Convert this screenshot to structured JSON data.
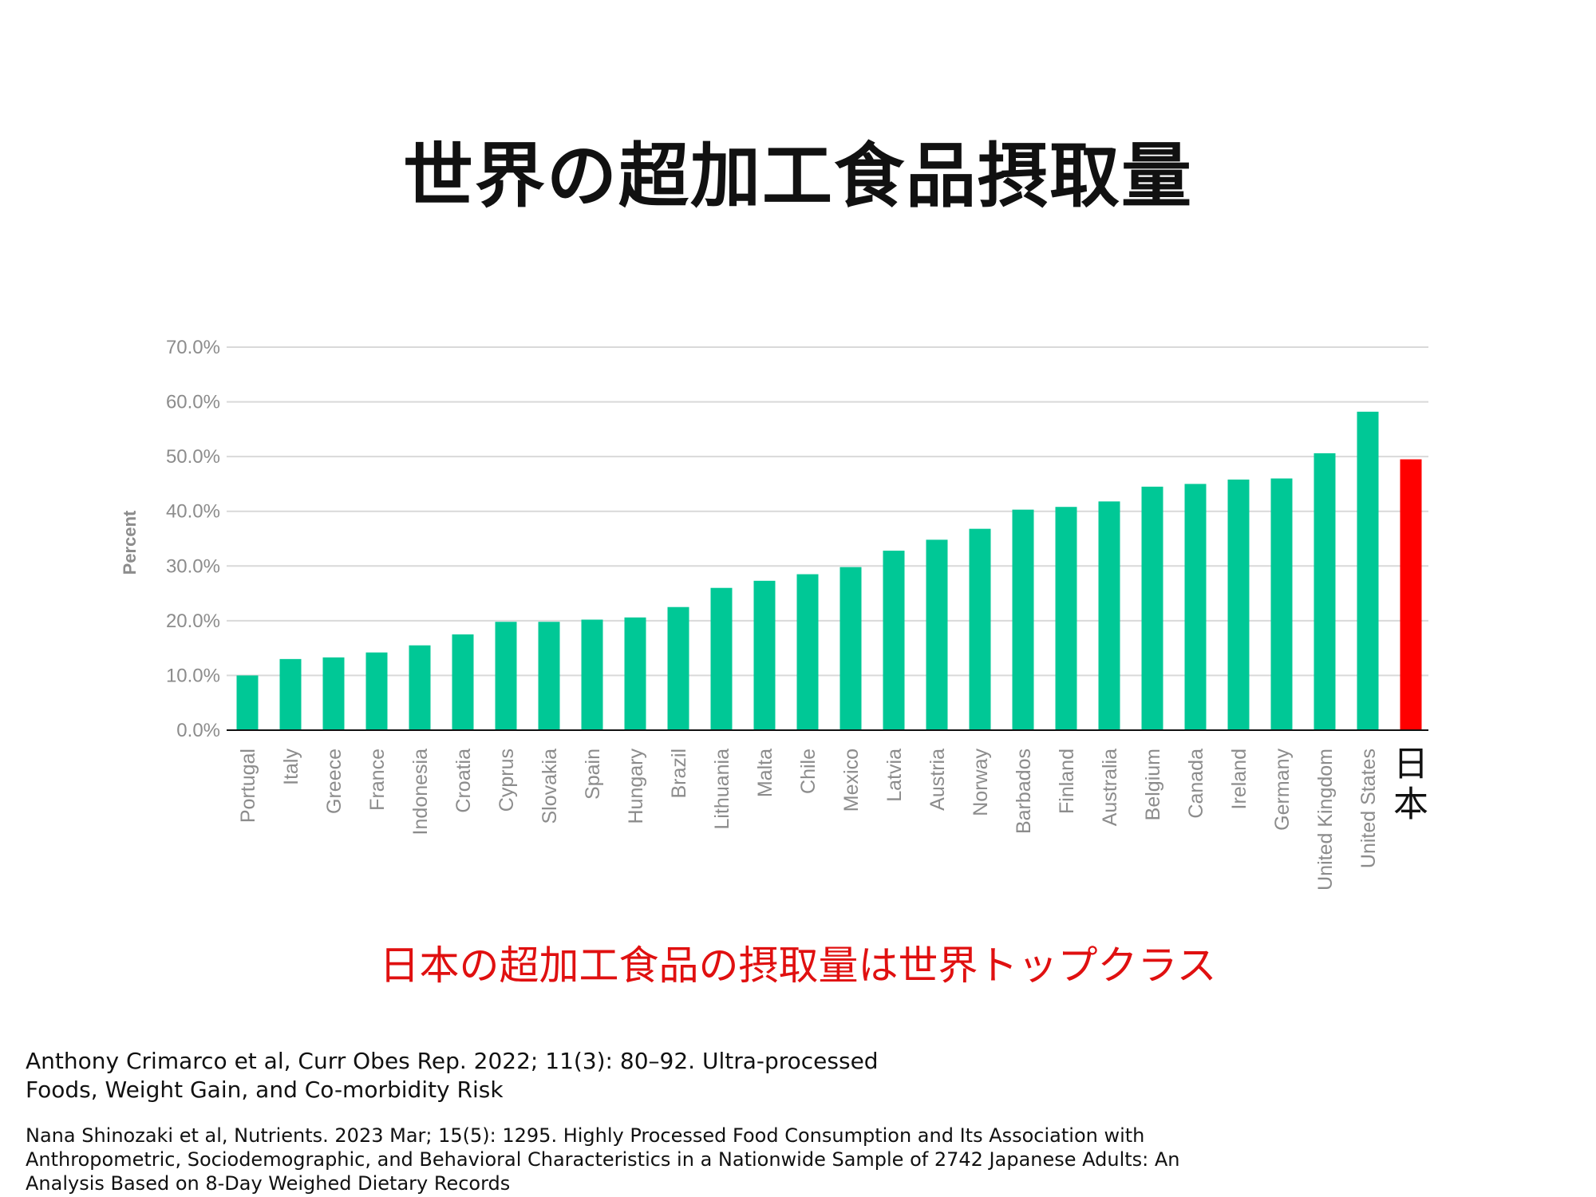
{
  "title": "世界の超加工食品摂取量",
  "subtitle": "日本の超加工食品の摂取量は世界トップクラス",
  "references": [
    "Anthony Crimarco et al,  Curr Obes Rep. 2022; 11(3): 80–92. Ultra-processed Foods, Weight Gain, and Co-morbidity Risk",
    "Nana Shinozaki et al,  Nutrients. 2023 Mar; 15(5): 1295. Highly Processed Food Consumption and Its Association with Anthropometric, Sociodemographic, and Behavioral Characteristics in a Nationwide Sample of 2742 Japanese Adults: An Analysis Based on 8-Day Weighed Dietary Records"
  ],
  "colors": {
    "bar": "#00c896",
    "highlight": "#ff0000",
    "grid": "#d9d9d9",
    "axis_text": "#8c8c8c"
  },
  "chart_data": {
    "type": "bar",
    "ylabel": "Percent",
    "xlabel": "",
    "ylim": [
      0,
      70
    ],
    "yticks": [
      "0.0%",
      "10.0%",
      "20.0%",
      "30.0%",
      "40.0%",
      "50.0%",
      "60.0%",
      "70.0%"
    ],
    "grid": true,
    "highlight_category": "日本",
    "categories": [
      "Portugal",
      "Italy",
      "Greece",
      "France",
      "Indonesia",
      "Croatia",
      "Cyprus",
      "Slovakia",
      "Spain",
      "Hungary",
      "Brazil",
      "Lithuania",
      "Malta",
      "Chile",
      "Mexico",
      "Latvia",
      "Austria",
      "Norway",
      "Barbados",
      "Finland",
      "Australia",
      "Belgium",
      "Canada",
      "Ireland",
      "Germany",
      "United Kingdom",
      "United States",
      "日本"
    ],
    "values": [
      10.0,
      13.0,
      13.3,
      14.2,
      15.5,
      17.5,
      19.8,
      19.8,
      20.2,
      20.6,
      22.5,
      26.0,
      27.3,
      28.5,
      29.8,
      32.8,
      34.8,
      36.8,
      40.3,
      40.8,
      41.8,
      44.5,
      45.0,
      45.8,
      46.0,
      50.6,
      58.2,
      49.5
    ]
  }
}
